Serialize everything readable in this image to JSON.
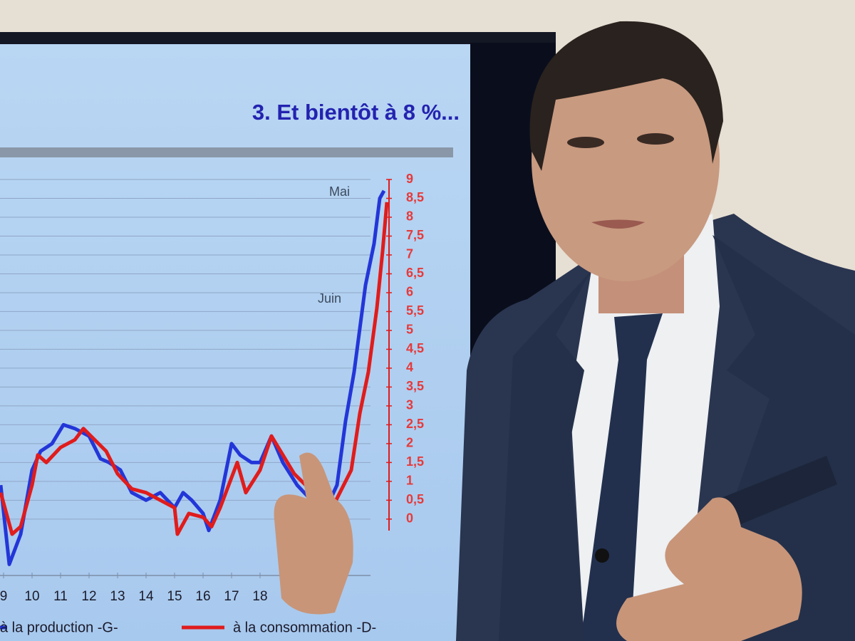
{
  "chart_data": {
    "type": "line",
    "title": "3. Et bientôt à 8 %...",
    "annotations": [
      "Mai",
      "Juin"
    ],
    "xlim": [
      8.875,
      22.75
    ],
    "xticks": [
      9,
      10,
      11,
      12,
      13,
      14,
      15,
      16,
      17,
      18
    ],
    "y2lim": [
      -1.4,
      9
    ],
    "y2ticks": [
      0,
      {
        "value": 0.5,
        "label": "0,5"
      },
      1,
      {
        "value": 1.5,
        "label": "1,5"
      },
      2,
      {
        "value": 2.5,
        "label": "2,5"
      },
      3,
      {
        "value": 3.5,
        "label": "3,5"
      },
      4,
      {
        "value": 4.5,
        "label": "4,5"
      },
      5,
      {
        "value": 5.5,
        "label": "5,5"
      },
      6,
      {
        "value": 6.5,
        "label": "6,5"
      },
      7,
      {
        "value": 7.5,
        "label": "7,5"
      },
      8,
      {
        "value": 8.5,
        "label": "8,5"
      },
      9
    ],
    "grid": true,
    "series": [
      {
        "name": "à la production -G-",
        "color": "#2336d8",
        "axis": "y2",
        "x": [
          8.9,
          9.2,
          9.6,
          10,
          10.3,
          10.7,
          11.1,
          11.5,
          12,
          12.4,
          12.7,
          13.1,
          13.5,
          14,
          14.5,
          15,
          15.3,
          15.6,
          16,
          16.2,
          16.6,
          17,
          17.3,
          17.7,
          18,
          18.4,
          18.8,
          19.3,
          19.8,
          20.3,
          20.7,
          21,
          21.3,
          21.7,
          22,
          22.2,
          22.35
        ],
        "values": [
          0.9,
          -1.2,
          -0.4,
          1.3,
          1.8,
          2.0,
          2.5,
          2.4,
          2.2,
          1.6,
          1.5,
          1.3,
          0.7,
          0.5,
          0.7,
          0.3,
          0.7,
          0.5,
          0.15,
          -0.3,
          0.5,
          2.0,
          1.7,
          1.5,
          1.5,
          2.2,
          1.5,
          0.9,
          0.5,
          0.25,
          0.9,
          2.6,
          3.9,
          6.2,
          7.3,
          8.5,
          8.7
        ]
      },
      {
        "name": "à la consommation -D-",
        "color": "#e01c1c",
        "axis": "y2",
        "x": [
          8.9,
          9.3,
          9.6,
          10,
          10.2,
          10.5,
          11,
          11.5,
          11.8,
          12.2,
          12.6,
          13,
          13.5,
          14,
          14.5,
          15,
          15.1,
          15.5,
          16,
          16.3,
          16.6,
          17,
          17.2,
          17.5,
          18,
          18.4,
          18.8,
          19.2,
          19.6,
          20,
          20.5,
          20.8,
          21.2,
          21.5,
          21.8,
          22.1,
          22.3,
          22.45
        ],
        "values": [
          0.7,
          -0.4,
          -0.2,
          0.9,
          1.7,
          1.5,
          1.9,
          2.1,
          2.4,
          2.1,
          1.8,
          1.2,
          0.8,
          0.7,
          0.5,
          0.3,
          -0.4,
          0.15,
          0.05,
          -0.2,
          0.3,
          1.1,
          1.5,
          0.7,
          1.3,
          2.2,
          1.7,
          1.2,
          0.9,
          0.7,
          0.25,
          0.7,
          1.3,
          2.8,
          3.9,
          5.6,
          7.1,
          8.4
        ]
      }
    ]
  }
}
